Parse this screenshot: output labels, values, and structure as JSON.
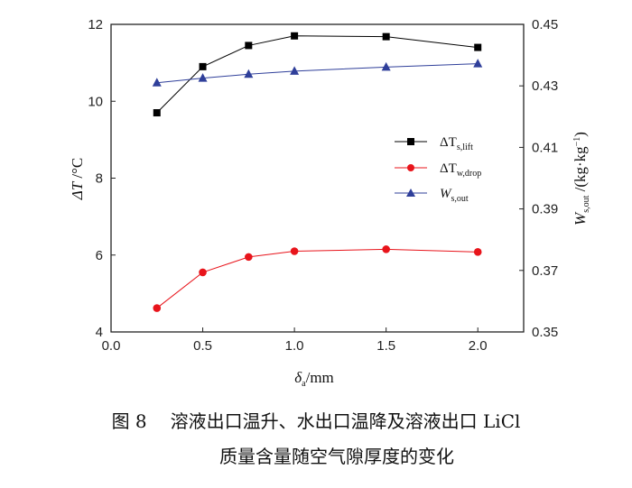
{
  "chart_data": {
    "type": "line",
    "x": [
      0.25,
      0.5,
      0.75,
      1.0,
      1.5,
      2.0
    ],
    "xlabel": {
      "sym": "δ",
      "sub": "a",
      "unit": "/mm"
    },
    "ylabel_left": {
      "sym": "ΔT",
      "unit": " /°C"
    },
    "ylabel_right": {
      "sym": "W",
      "sub": "s,out",
      "unit": " /(kg·kg",
      "sup": "−1",
      "close": ")"
    },
    "xlim": [
      0.0,
      2.25
    ],
    "ylim_left": [
      4,
      12
    ],
    "ylim_right": [
      0.35,
      0.45
    ],
    "x_ticks": [
      "0.0",
      "0.5",
      "1.0",
      "1.5",
      "2.0"
    ],
    "y_left_ticks": [
      "4",
      "6",
      "8",
      "10",
      "12"
    ],
    "y_right_ticks": [
      "0.35",
      "0.37",
      "0.39",
      "0.41",
      "0.43",
      "0.45"
    ],
    "grid": false,
    "legend_position": "right-middle",
    "series": [
      {
        "name": "ΔT",
        "name_sub": "s,lift",
        "axis": "left",
        "marker": "square",
        "color": "#000000",
        "values": [
          9.7,
          10.9,
          11.45,
          11.7,
          11.68,
          11.4
        ]
      },
      {
        "name": "ΔT",
        "name_sub": "w,drop",
        "axis": "left",
        "marker": "circle",
        "color": "#e8141b",
        "values": [
          4.62,
          5.55,
          5.95,
          6.1,
          6.15,
          6.08
        ]
      },
      {
        "name": "W",
        "name_sub": "s,out",
        "axis": "right",
        "marker": "triangle",
        "color": "#2f3f9a",
        "values": [
          0.431,
          0.4325,
          0.4338,
          0.4348,
          0.4361,
          0.4372
        ]
      }
    ]
  },
  "caption": {
    "figure_number": "图 8",
    "line1": "溶液出口温升、水出口温降及溶液出口 LiCl",
    "line2": "质量含量随空气隙厚度的变化"
  }
}
